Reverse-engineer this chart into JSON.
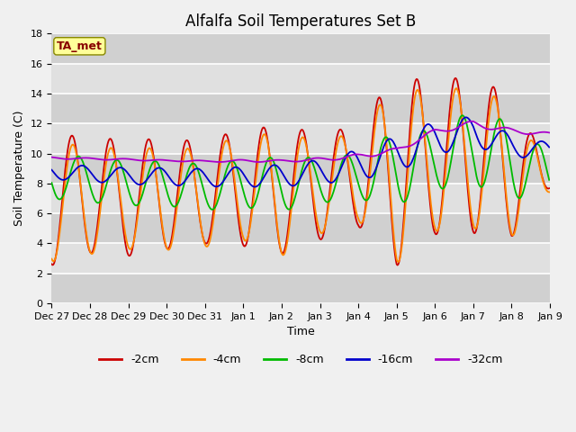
{
  "title": "Alfalfa Soil Temperatures Set B",
  "xlabel": "Time",
  "ylabel": "Soil Temperature (C)",
  "ylim": [
    0,
    18
  ],
  "yticks": [
    0,
    2,
    4,
    6,
    8,
    10,
    12,
    14,
    16,
    18
  ],
  "xtick_labels": [
    "Dec 27",
    "Dec 28",
    "Dec 29",
    "Dec 30",
    "Dec 31",
    "Jan 1",
    "Jan 2",
    "Jan 3",
    "Jan 4",
    "Jan 5",
    "Jan 6",
    "Jan 7",
    "Jan 8",
    "Jan 9"
  ],
  "legend_labels": [
    "-2cm",
    "-4cm",
    "-8cm",
    "-16cm",
    "-32cm"
  ],
  "line_colors": [
    "#cc0000",
    "#ff8800",
    "#00bb00",
    "#0000cc",
    "#aa00cc"
  ],
  "fig_facecolor": "#f0f0f0",
  "plot_facecolor": "#e8e8e8",
  "band_colors": [
    "#d0d0d0",
    "#e0e0e0"
  ],
  "annotation_text": "TA_met",
  "annotation_color": "#880000",
  "annotation_bg": "#ffff99",
  "annotation_edge": "#888800",
  "title_fontsize": 12,
  "label_fontsize": 9,
  "tick_fontsize": 8,
  "legend_fontsize": 9
}
